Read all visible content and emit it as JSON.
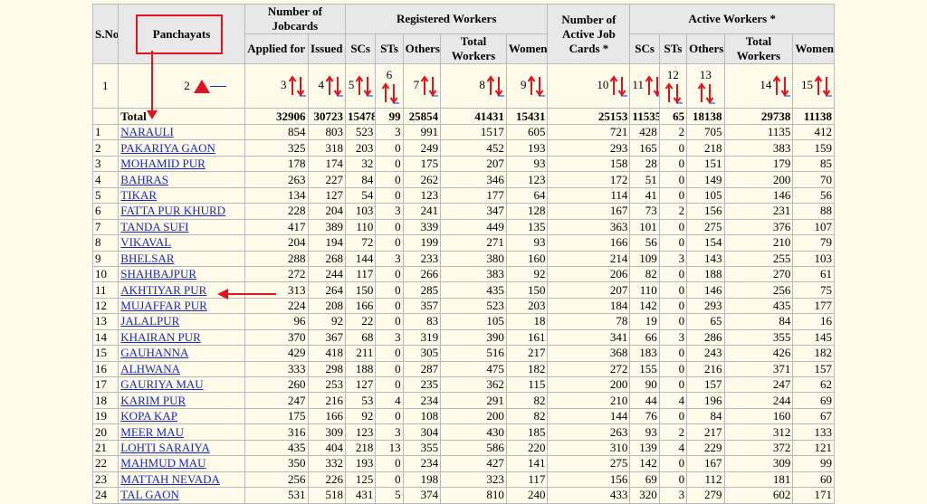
{
  "header": {
    "sno": "S.No",
    "panchayats": "Panchayats",
    "jobcards_group": "Number of Jobcards",
    "applied_for": "Applied for",
    "issued": "Issued",
    "registered_group": "Registered Workers",
    "reg_scs": "SCs",
    "reg_sts": "STs",
    "reg_others": "Others",
    "reg_total": "Total Workers",
    "reg_women": "Women",
    "active_jobcards": "Number of Active Job Cards *",
    "active_group": "Active Workers *",
    "act_scs": "SCs",
    "act_sts": "STs",
    "act_others": "Others",
    "act_total": "Total Workers",
    "act_women": "Women"
  },
  "sort_row": {
    "sno": "1",
    "cols": [
      "2",
      "3",
      "4",
      "5",
      "6",
      "7",
      "8",
      "9",
      "10",
      "11",
      "12",
      "13",
      "14",
      "15"
    ]
  },
  "total": {
    "label": "Total",
    "values": [
      "32906",
      "30723",
      "15478",
      "99",
      "25854",
      "41431",
      "15431",
      "25153",
      "11535",
      "65",
      "18138",
      "29738",
      "11138"
    ]
  },
  "rows": [
    {
      "sn": "1",
      "name": "NARAULI",
      "v": [
        "854",
        "803",
        "523",
        "3",
        "991",
        "1517",
        "605",
        "721",
        "428",
        "2",
        "705",
        "1135",
        "412"
      ]
    },
    {
      "sn": "2",
      "name": "PAKARIYA GAON",
      "v": [
        "325",
        "318",
        "203",
        "0",
        "249",
        "452",
        "193",
        "293",
        "165",
        "0",
        "218",
        "383",
        "159"
      ]
    },
    {
      "sn": "3",
      "name": "MOHAMID PUR",
      "v": [
        "178",
        "174",
        "32",
        "0",
        "175",
        "207",
        "93",
        "158",
        "28",
        "0",
        "151",
        "179",
        "85"
      ]
    },
    {
      "sn": "4",
      "name": "BAHRAS",
      "v": [
        "263",
        "227",
        "84",
        "0",
        "262",
        "346",
        "123",
        "172",
        "51",
        "0",
        "149",
        "200",
        "70"
      ]
    },
    {
      "sn": "5",
      "name": "TIKAR",
      "v": [
        "134",
        "127",
        "54",
        "0",
        "123",
        "177",
        "64",
        "114",
        "41",
        "0",
        "105",
        "146",
        "56"
      ]
    },
    {
      "sn": "6",
      "name": "FATTA PUR KHURD",
      "v": [
        "228",
        "204",
        "103",
        "3",
        "241",
        "347",
        "128",
        "167",
        "73",
        "2",
        "156",
        "231",
        "88"
      ]
    },
    {
      "sn": "7",
      "name": "TANDA SUFI",
      "v": [
        "417",
        "389",
        "110",
        "0",
        "339",
        "449",
        "135",
        "363",
        "101",
        "0",
        "275",
        "376",
        "107"
      ]
    },
    {
      "sn": "8",
      "name": "VIKAVAL",
      "v": [
        "204",
        "194",
        "72",
        "0",
        "199",
        "271",
        "93",
        "166",
        "56",
        "0",
        "154",
        "210",
        "79"
      ]
    },
    {
      "sn": "9",
      "name": "BHELSAR",
      "v": [
        "288",
        "268",
        "144",
        "3",
        "233",
        "380",
        "160",
        "214",
        "109",
        "3",
        "143",
        "255",
        "103"
      ]
    },
    {
      "sn": "10",
      "name": "SHAHBAJPUR",
      "v": [
        "272",
        "244",
        "117",
        "0",
        "266",
        "383",
        "92",
        "206",
        "82",
        "0",
        "188",
        "270",
        "61"
      ]
    },
    {
      "sn": "11",
      "name": "AKHTIYAR PUR",
      "v": [
        "313",
        "264",
        "150",
        "0",
        "285",
        "435",
        "150",
        "207",
        "110",
        "0",
        "146",
        "256",
        "75"
      ]
    },
    {
      "sn": "12",
      "name": "MUJAFFAR PUR",
      "v": [
        "224",
        "208",
        "166",
        "0",
        "357",
        "523",
        "203",
        "184",
        "142",
        "0",
        "293",
        "435",
        "177"
      ]
    },
    {
      "sn": "13",
      "name": "JALALPUR",
      "v": [
        "96",
        "92",
        "22",
        "0",
        "83",
        "105",
        "18",
        "78",
        "19",
        "0",
        "65",
        "84",
        "16"
      ]
    },
    {
      "sn": "14",
      "name": "KHAIRAN PUR",
      "v": [
        "370",
        "367",
        "68",
        "3",
        "319",
        "390",
        "161",
        "341",
        "66",
        "3",
        "286",
        "355",
        "145"
      ]
    },
    {
      "sn": "15",
      "name": "GAUHANNA",
      "v": [
        "429",
        "418",
        "211",
        "0",
        "305",
        "516",
        "217",
        "368",
        "183",
        "0",
        "243",
        "426",
        "182"
      ]
    },
    {
      "sn": "16",
      "name": "ALHWANA",
      "v": [
        "333",
        "298",
        "188",
        "0",
        "287",
        "475",
        "182",
        "272",
        "155",
        "0",
        "216",
        "371",
        "157"
      ]
    },
    {
      "sn": "17",
      "name": "GAURIYA MAU",
      "v": [
        "260",
        "253",
        "127",
        "0",
        "235",
        "362",
        "115",
        "200",
        "90",
        "0",
        "157",
        "247",
        "62"
      ]
    },
    {
      "sn": "18",
      "name": "KARIM PUR",
      "v": [
        "247",
        "216",
        "53",
        "4",
        "234",
        "291",
        "82",
        "210",
        "44",
        "4",
        "196",
        "244",
        "69"
      ]
    },
    {
      "sn": "19",
      "name": "KOPA KAP",
      "v": [
        "175",
        "166",
        "92",
        "0",
        "108",
        "200",
        "82",
        "144",
        "76",
        "0",
        "84",
        "160",
        "67"
      ]
    },
    {
      "sn": "20",
      "name": "MEER MAU",
      "v": [
        "316",
        "309",
        "123",
        "3",
        "304",
        "430",
        "185",
        "263",
        "93",
        "2",
        "217",
        "312",
        "133"
      ]
    },
    {
      "sn": "21",
      "name": "LOHTI SARAIYA",
      "v": [
        "435",
        "404",
        "218",
        "13",
        "355",
        "586",
        "220",
        "310",
        "139",
        "4",
        "229",
        "372",
        "121"
      ]
    },
    {
      "sn": "22",
      "name": "MAHMUD MAU",
      "v": [
        "350",
        "332",
        "193",
        "0",
        "234",
        "427",
        "141",
        "275",
        "142",
        "0",
        "167",
        "309",
        "99"
      ]
    },
    {
      "sn": "23",
      "name": "MATTAH NEVADA",
      "v": [
        "256",
        "226",
        "125",
        "0",
        "198",
        "323",
        "117",
        "156",
        "69",
        "0",
        "112",
        "181",
        "60"
      ]
    },
    {
      "sn": "24",
      "name": "TAL GAON",
      "v": [
        "531",
        "518",
        "431",
        "5",
        "374",
        "810",
        "240",
        "433",
        "320",
        "3",
        "279",
        "602",
        "171"
      ]
    }
  ],
  "colors": {
    "annotation": "#e0141e",
    "link": "#1a2ab8",
    "header_bg": "#e8e8e8",
    "page_bg": "#fefbeb"
  }
}
